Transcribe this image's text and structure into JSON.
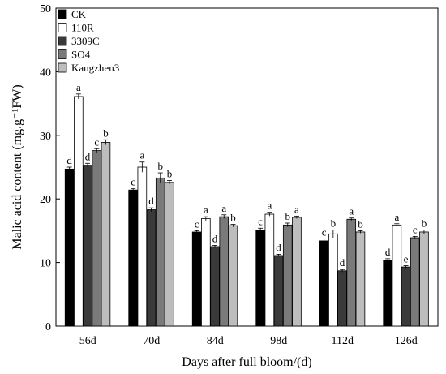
{
  "chart_data": {
    "type": "bar",
    "xlabel": "Days after full bloom/(d)",
    "ylabel": "Malic acid content (mg.g⁻¹FW)",
    "ylim": [
      0,
      50
    ],
    "yticks": [
      0,
      10,
      20,
      30,
      40,
      50
    ],
    "categories": [
      "56d",
      "70d",
      "84d",
      "98d",
      "112d",
      "126d"
    ],
    "legend_position": "top-left",
    "series": [
      {
        "name": "CK",
        "color": "#000000",
        "values": [
          24.7,
          21.4,
          14.8,
          15.1,
          13.4,
          10.4
        ],
        "errors": [
          0.3,
          0.2,
          0.2,
          0.3,
          0.3,
          0.2
        ],
        "labels": [
          "d",
          "c",
          "c",
          "c",
          "c",
          "d"
        ]
      },
      {
        "name": "110R",
        "color": "#ffffff",
        "values": [
          36.1,
          25.0,
          16.9,
          17.6,
          14.5,
          15.9
        ],
        "errors": [
          0.4,
          0.8,
          0.3,
          0.3,
          0.6,
          0.2
        ],
        "labels": [
          "a",
          "a",
          "a",
          "a",
          "b",
          "a"
        ]
      },
      {
        "name": "3309C",
        "color": "#3a3a3a",
        "values": [
          25.3,
          18.3,
          12.5,
          11.1,
          8.7,
          9.3
        ],
        "errors": [
          0.3,
          0.3,
          0.2,
          0.2,
          0.2,
          0.2
        ],
        "labels": [
          "d",
          "d",
          "d",
          "d",
          "d",
          "e"
        ]
      },
      {
        "name": "SO4",
        "color": "#7a7a7a",
        "values": [
          27.6,
          23.3,
          17.2,
          15.9,
          16.8,
          13.9
        ],
        "errors": [
          0.3,
          0.8,
          0.3,
          0.3,
          0.2,
          0.2
        ],
        "labels": [
          "c",
          "b",
          "a",
          "b",
          "a",
          "c"
        ]
      },
      {
        "name": "Kangzhen3",
        "color": "#bdbdbd",
        "values": [
          28.9,
          22.6,
          15.8,
          17.1,
          14.8,
          14.8
        ],
        "errors": [
          0.4,
          0.3,
          0.2,
          0.2,
          0.2,
          0.3
        ],
        "labels": [
          "b",
          "b",
          "b",
          "a",
          "b",
          "b"
        ]
      }
    ]
  }
}
